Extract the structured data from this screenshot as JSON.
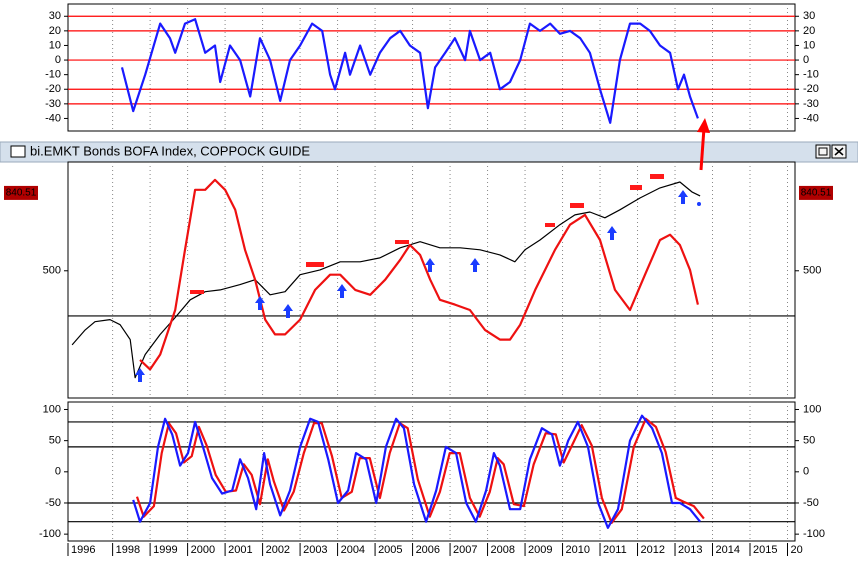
{
  "chart_data": [
    {
      "type": "line",
      "ylim": [
        -48.6,
        38.4
      ],
      "yticks": [
        30,
        20,
        10,
        0,
        -10,
        -20,
        -30,
        -40
      ],
      "hlines": [
        30,
        20,
        0,
        -20,
        -30
      ],
      "hline_color": "#ff0000",
      "grid": true,
      "series": [
        {
          "color": "#1a1aff",
          "x": [
            1998.25,
            1998.55,
            1998.87,
            1999.27,
            1999.53,
            1999.67,
            1999.93,
            2000.2,
            2000.47,
            2000.73,
            2000.87,
            2001.13,
            2001.4,
            2001.67,
            2001.93,
            2002.2,
            2002.47,
            2002.73,
            2003,
            2003.32,
            2003.59,
            2003.8,
            2003.93,
            2004.2,
            2004.33,
            2004.6,
            2004.87,
            2005.13,
            2005.4,
            2005.67,
            2005.93,
            2006.2,
            2006.41,
            2006.6,
            2006.87,
            2007.13,
            2007.4,
            2007.53,
            2007.8,
            2008.07,
            2008.33,
            2008.6,
            2008.87,
            2009.13,
            2009.4,
            2009.67,
            2009.93,
            2010.2,
            2010.47,
            2010.73,
            2011,
            2011.27,
            2011.53,
            2011.8,
            2012.07,
            2012.33,
            2012.6,
            2012.87,
            2013.08,
            2013.24,
            2013.4,
            2013.61
          ],
          "values": [
            -5,
            -35,
            -10,
            25,
            15,
            5,
            25,
            28,
            5,
            10,
            -15,
            10,
            0,
            -25,
            15,
            0,
            -28,
            0,
            10,
            25,
            20,
            -10,
            -20,
            5,
            -10,
            10,
            -10,
            5,
            15,
            20,
            10,
            5,
            -33,
            -5,
            5,
            15,
            0,
            20,
            0,
            5,
            -20,
            -15,
            0,
            25,
            20,
            25,
            18,
            20,
            15,
            5,
            -20,
            -43,
            0,
            25,
            25,
            20,
            10,
            5,
            -20,
            -10,
            -25,
            -40
          ]
        }
      ]
    },
    {
      "type": "line",
      "title": "bi.EMKT Bonds BOFA Index, COPPOCK GUIDE",
      "log_scale": true,
      "ylim": [
        214,
        1033
      ],
      "yticks": [
        500
      ],
      "last_price": 840.51,
      "last_price_color": "#b00000",
      "hlines": [
        370
      ],
      "hline_color": "#000000",
      "grid": true,
      "series": [
        {
          "color": "#000000",
          "x": [
            1996.92,
            1997.27,
            1997.53,
            1997.93,
            1998.2,
            1998.47,
            1998.6,
            1998.87,
            1999.27,
            1999.67,
            2000.07,
            2000.47,
            2000.87,
            2001.4,
            2001.8,
            2002.2,
            2002.6,
            2003,
            2003.53,
            2004.07,
            2004.6,
            2005.13,
            2005.67,
            2006.2,
            2006.73,
            2007.27,
            2007.8,
            2008.33,
            2008.73,
            2009,
            2009.4,
            2009.93,
            2010.33,
            2010.73,
            2011.13,
            2011.53,
            2012.07,
            2012.6,
            2013.13,
            2013.45,
            2013.67
          ],
          "values": [
            305,
            337,
            356,
            361,
            349,
            316,
            245,
            286,
            327,
            366,
            412,
            435,
            440,
            456,
            471,
            426,
            435,
            487,
            503,
            531,
            531,
            545,
            583,
            607,
            583,
            583,
            575,
            556,
            531,
            575,
            614,
            680,
            726,
            740,
            712,
            751,
            813,
            869,
            904,
            846,
            824
          ]
        },
        {
          "color": "#ee1111",
          "x": [
            1998.73,
            1999,
            1999.27,
            1999.67,
            1999.93,
            2000.2,
            2000.47,
            2000.73,
            2001,
            2001.27,
            2001.53,
            2001.8,
            2002.07,
            2002.33,
            2002.6,
            2003,
            2003.4,
            2003.8,
            2004.07,
            2004.47,
            2004.87,
            2005.27,
            2005.67,
            2005.93,
            2006.2,
            2006.47,
            2006.73,
            2007.13,
            2007.53,
            2007.93,
            2008.33,
            2008.6,
            2008.87,
            2009.27,
            2009.8,
            2010.2,
            2010.6,
            2011,
            2011.4,
            2011.8,
            2012.2,
            2012.6,
            2012.87,
            2013.13,
            2013.4,
            2013.61
          ],
          "values": [
            276,
            259,
            286,
            385,
            575,
            858,
            858,
            917,
            858,
            751,
            575,
            471,
            361,
            327,
            327,
            361,
            440,
            487,
            487,
            440,
            426,
            471,
            538,
            594,
            556,
            471,
            412,
            399,
            385,
            337,
            316,
            316,
            349,
            440,
            575,
            680,
            726,
            614,
            440,
            385,
            487,
            614,
            636,
            594,
            503,
            399
          ]
        }
      ]
    },
    {
      "type": "line",
      "ylim": [
        -111,
        112
      ],
      "yticks": [
        100,
        50,
        0,
        -50,
        -100
      ],
      "hlines": [
        80,
        40,
        -50,
        -80
      ],
      "hline_color": "#000000",
      "grid": true,
      "xlim": [
        1996.81,
        2016.2
      ],
      "xticks": [
        1996,
        1998,
        1999,
        2000,
        2001,
        2002,
        2003,
        2004,
        2005,
        2006,
        2007,
        2008,
        2009,
        2010,
        2011,
        2012,
        2013,
        2014,
        2015,
        {
          "value": 2016,
          "label": "20"
        }
      ],
      "series": [
        {
          "color": "#ee1111",
          "x": [
            1998.65,
            1998.83,
            1999.1,
            1999.31,
            1999.5,
            1999.69,
            1999.9,
            2000.11,
            2000.3,
            2000.51,
            2000.75,
            2001.02,
            2001.29,
            2001.5,
            2001.71,
            2001.93,
            2002.14,
            2002.3,
            2002.57,
            2002.83,
            2003.1,
            2003.37,
            2003.58,
            2003.85,
            2004.11,
            2004.38,
            2004.59,
            2004.86,
            2005.13,
            2005.39,
            2005.66,
            2005.87,
            2006.14,
            2006.46,
            2006.73,
            2006.99,
            2007.26,
            2007.53,
            2007.79,
            2008.06,
            2008.27,
            2008.43,
            2008.7,
            2008.97,
            2009.23,
            2009.55,
            2009.82,
            2010.03,
            2010.25,
            2010.51,
            2010.78,
            2011.05,
            2011.31,
            2011.58,
            2011.9,
            2012.22,
            2012.49,
            2012.75,
            2013.02,
            2013.23,
            2013.5,
            2013.77
          ],
          "values": [
            -40,
            -72,
            -55,
            30,
            78,
            62,
            15,
            25,
            72,
            42,
            -5,
            -32,
            -30,
            12,
            -5,
            -52,
            20,
            -15,
            -62,
            -32,
            30,
            78,
            78,
            25,
            -42,
            -32,
            22,
            22,
            -42,
            30,
            78,
            70,
            -12,
            -72,
            -32,
            30,
            30,
            -42,
            -72,
            -32,
            22,
            12,
            -52,
            -55,
            12,
            62,
            60,
            15,
            42,
            75,
            42,
            -42,
            -82,
            -60,
            40,
            85,
            72,
            32,
            -42,
            -48,
            -55,
            -75
          ]
        },
        {
          "color": "#1a1aff",
          "x": [
            1998.55,
            1998.73,
            1999,
            1999.21,
            1999.4,
            1999.59,
            1999.8,
            2000.01,
            2000.2,
            2000.41,
            2000.65,
            2000.92,
            2001.19,
            2001.4,
            2001.61,
            2001.83,
            2002.04,
            2002.2,
            2002.47,
            2002.73,
            2003,
            2003.27,
            2003.48,
            2003.75,
            2004.01,
            2004.28,
            2004.49,
            2004.76,
            2005.03,
            2005.29,
            2005.56,
            2005.77,
            2006.04,
            2006.36,
            2006.63,
            2006.89,
            2007.16,
            2007.43,
            2007.69,
            2007.96,
            2008.17,
            2008.33,
            2008.6,
            2008.87,
            2009.13,
            2009.45,
            2009.72,
            2009.93,
            2010.15,
            2010.41,
            2010.68,
            2010.95,
            2011.21,
            2011.48,
            2011.8,
            2012.12,
            2012.39,
            2012.65,
            2012.92,
            2013.13,
            2013.4,
            2013.67
          ],
          "values": [
            -45,
            -80,
            -50,
            40,
            85,
            60,
            10,
            30,
            80,
            40,
            -10,
            -35,
            -30,
            20,
            -10,
            -60,
            30,
            -20,
            -70,
            -30,
            40,
            85,
            80,
            20,
            -50,
            -30,
            30,
            20,
            -50,
            40,
            85,
            70,
            -20,
            -80,
            -30,
            40,
            30,
            -50,
            -80,
            -30,
            30,
            10,
            -60,
            -60,
            20,
            70,
            60,
            10,
            50,
            80,
            40,
            -50,
            -90,
            -60,
            50,
            90,
            70,
            30,
            -50,
            -50,
            -60,
            -80
          ]
        }
      ]
    }
  ]
}
